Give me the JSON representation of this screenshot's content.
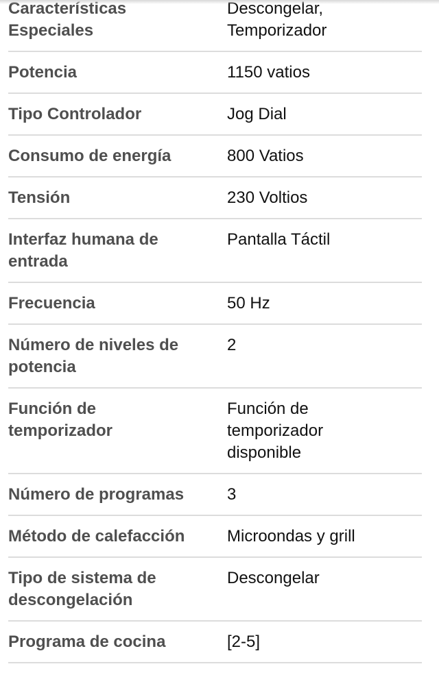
{
  "specs": [
    {
      "label": "Características Especiales",
      "value": "Descongelar, Temporizador"
    },
    {
      "label": "Potencia",
      "value": "1150 vatios"
    },
    {
      "label": "Tipo Controlador",
      "value": "Jog Dial"
    },
    {
      "label": "Consumo de energía",
      "value": "800 Vatios"
    },
    {
      "label": "Tensión",
      "value": "230 Voltios"
    },
    {
      "label": "Interfaz humana de entrada",
      "value": "Pantalla Táctil"
    },
    {
      "label": "Frecuencia",
      "value": "50 Hz"
    },
    {
      "label": "Número de niveles de potencia",
      "value": "2"
    },
    {
      "label": "Función de temporizador",
      "value": "Función de temporizador disponible"
    },
    {
      "label": "Número de programas",
      "value": "3"
    },
    {
      "label": "Método de calefacción",
      "value": "Microondas y grill"
    },
    {
      "label": "Tipo de sistema de descongelación",
      "value": "Descongelar"
    },
    {
      "label": "Programa de cocina",
      "value": "[2-5]"
    }
  ]
}
